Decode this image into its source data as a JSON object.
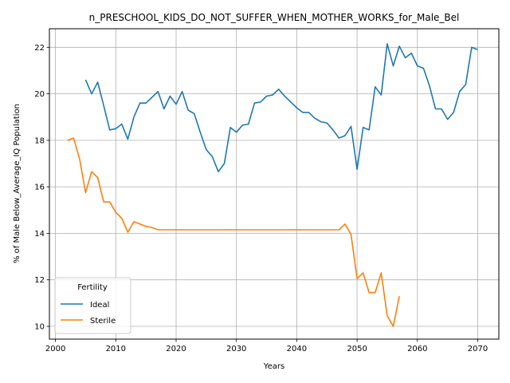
{
  "chart_data": {
    "type": "line",
    "title": "n_PRESCHOOL_KIDS_DO_NOT_SUFFER_WHEN_MOTHER_WORKS_for_Male_Bel",
    "xlabel": "Years",
    "ylabel": "% of Male Below_Average_IQ Population",
    "xlim": [
      1999,
      2073.5
    ],
    "ylim": [
      9.45,
      22.8
    ],
    "xticks": [
      2000,
      2010,
      2020,
      2030,
      2040,
      2050,
      2060,
      2070
    ],
    "yticks": [
      10,
      12,
      14,
      16,
      18,
      20,
      22
    ],
    "grid": true,
    "legend": {
      "title": "Fertility",
      "position": "lower-left"
    },
    "series": [
      {
        "name": "Ideal",
        "color": "#1f77b4",
        "x": [
          2005,
          2006,
          2007,
          2008,
          2009,
          2010,
          2011,
          2012,
          2013,
          2014,
          2015,
          2016,
          2017,
          2018,
          2019,
          2020,
          2021,
          2022,
          2023,
          2024,
          2025,
          2026,
          2027,
          2028,
          2029,
          2030,
          2031,
          2032,
          2033,
          2034,
          2035,
          2036,
          2037,
          2038,
          2039,
          2040,
          2041,
          2042,
          2043,
          2044,
          2045,
          2046,
          2047,
          2048,
          2049,
          2050,
          2051,
          2052,
          2053,
          2054,
          2055,
          2056,
          2057,
          2058,
          2059,
          2060,
          2061,
          2062,
          2063,
          2064,
          2065,
          2066,
          2067,
          2068,
          2069,
          2070
        ],
        "values": [
          20.6,
          20.0,
          20.5,
          19.5,
          18.45,
          18.5,
          18.7,
          18.05,
          19.0,
          19.6,
          19.6,
          19.85,
          20.1,
          19.35,
          19.9,
          19.55,
          20.1,
          19.3,
          19.15,
          18.35,
          17.6,
          17.3,
          16.65,
          17.0,
          18.55,
          18.35,
          18.65,
          18.7,
          19.6,
          19.65,
          19.9,
          19.95,
          20.2,
          19.9,
          19.65,
          19.4,
          19.2,
          19.2,
          18.95,
          18.8,
          18.75,
          18.45,
          18.1,
          18.2,
          18.6,
          16.75,
          18.55,
          18.45,
          20.3,
          19.95,
          22.15,
          21.2,
          22.05,
          21.55,
          21.75,
          21.2,
          21.1,
          20.35,
          19.35,
          19.35,
          18.9,
          19.2,
          20.1,
          20.4,
          22.0,
          21.9
        ]
      },
      {
        "name": "Sterile",
        "color": "#ff7f0e",
        "x": [
          2002,
          2003,
          2004,
          2005,
          2006,
          2007,
          2008,
          2009,
          2010,
          2011,
          2012,
          2013,
          2014,
          2015,
          2016,
          2017,
          2018,
          2019,
          2020,
          2021,
          2022,
          2023,
          2024,
          2025,
          2026,
          2027,
          2028,
          2029,
          2030,
          2031,
          2032,
          2033,
          2034,
          2035,
          2036,
          2037,
          2038,
          2039,
          2040,
          2041,
          2042,
          2043,
          2044,
          2045,
          2046,
          2047,
          2048,
          2049,
          2050,
          2051,
          2052,
          2053,
          2054,
          2055,
          2056,
          2057
        ],
        "values": [
          18.0,
          18.1,
          17.2,
          15.75,
          16.65,
          16.4,
          15.35,
          15.35,
          14.9,
          14.65,
          14.05,
          14.5,
          14.4,
          14.3,
          14.25,
          14.15,
          14.15,
          14.15,
          14.15,
          14.15,
          14.15,
          14.15,
          14.15,
          14.15,
          14.15,
          14.15,
          14.15,
          14.15,
          14.15,
          14.15,
          14.15,
          14.15,
          14.15,
          14.15,
          14.15,
          14.15,
          14.15,
          14.15,
          14.15,
          14.15,
          14.15,
          14.15,
          14.15,
          14.15,
          14.15,
          14.15,
          14.4,
          13.95,
          12.05,
          12.3,
          11.45,
          11.45,
          12.3,
          10.45,
          10.0,
          11.3
        ]
      }
    ]
  }
}
